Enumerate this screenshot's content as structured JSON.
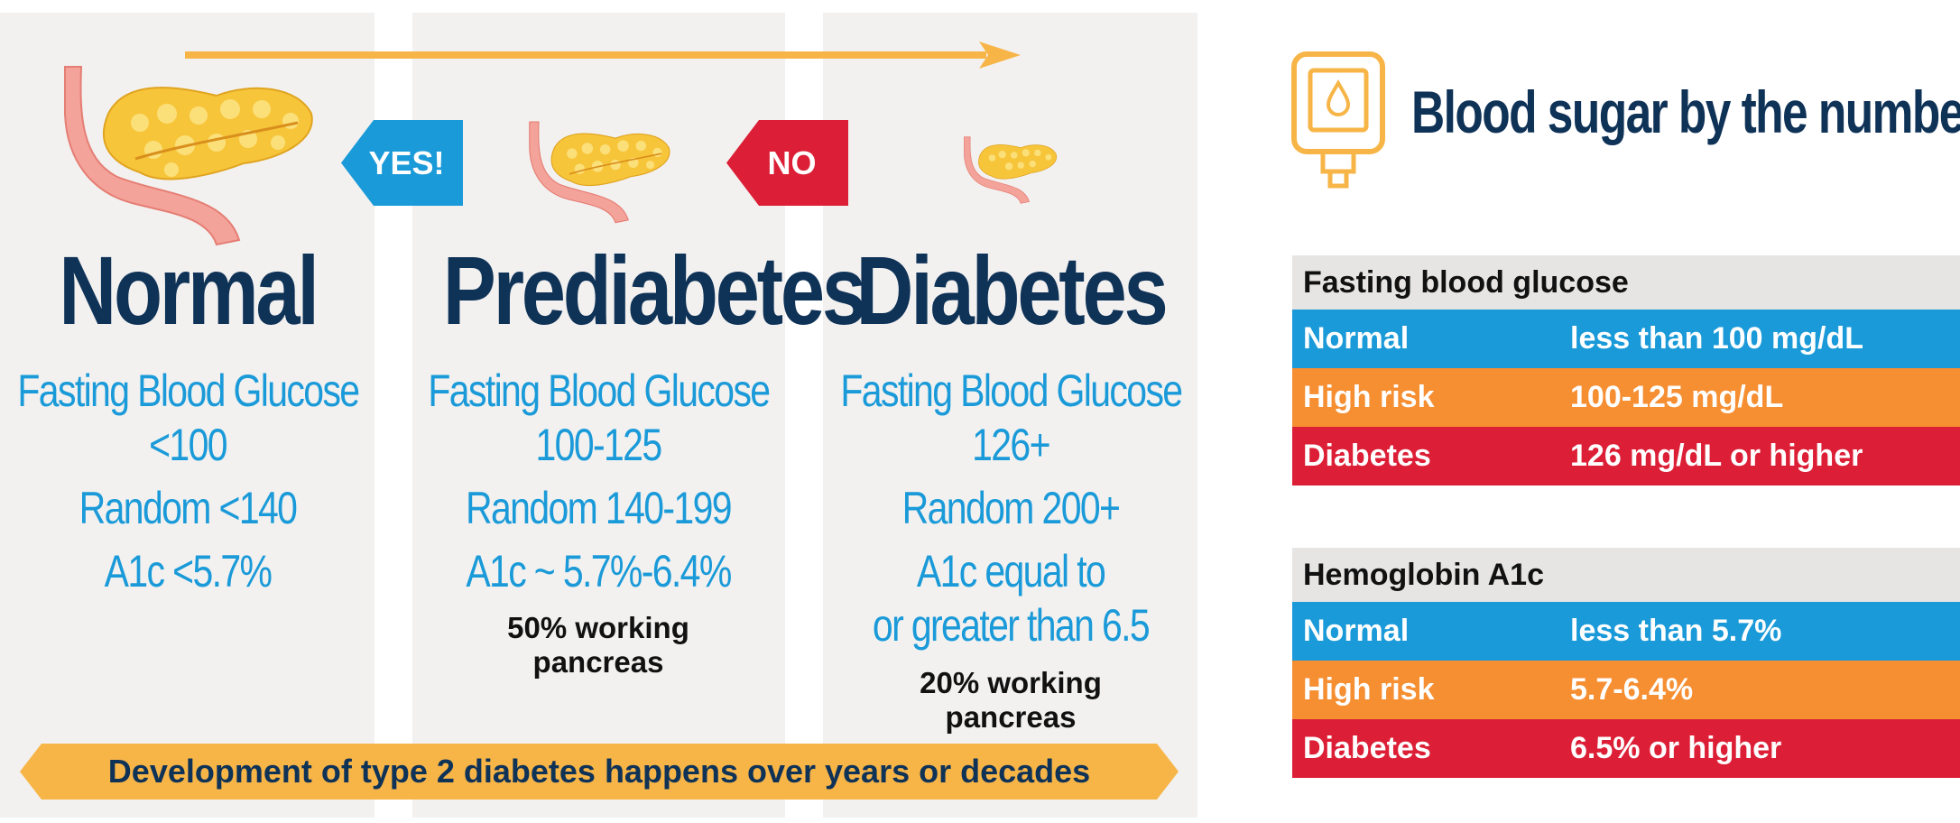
{
  "colors": {
    "navy": "#0f3257",
    "blue": "#1a9ad8",
    "orange": "#f68e32",
    "red": "#dc1f36",
    "yellow": "#f7b548",
    "panel": "#f2f1f0"
  },
  "stages": [
    {
      "title": "Normal",
      "lines": [
        "Fasting Blood Glucose",
        "<100",
        "Random <140",
        "A1c <5.7%"
      ],
      "note": []
    },
    {
      "title": "Prediabetes",
      "lines": [
        "Fasting Blood Glucose",
        "100-125",
        "Random 140-199",
        "A1c ~ 5.7%-6.4%"
      ],
      "note": [
        "50% working",
        "pancreas"
      ]
    },
    {
      "title": "Diabetes",
      "lines": [
        "Fasting Blood Glucose",
        "126+",
        "Random 200+",
        "A1c equal to",
        "or greater than 6.5"
      ],
      "note": [
        "20% working",
        "pancreas"
      ]
    }
  ],
  "tags": {
    "yes": "YES!",
    "no": "NO"
  },
  "banner": "Development of type 2 diabetes happens over years or decades",
  "headline": "Blood sugar by the numbers",
  "tables": [
    {
      "header": "Fasting blood glucose",
      "rows": [
        {
          "label": "Normal",
          "value": "less than 100 mg/dL",
          "color": "#1a9ad8"
        },
        {
          "label": "High risk",
          "value": "100-125 mg/dL",
          "color": "#f68e32"
        },
        {
          "label": "Diabetes",
          "value": "126 mg/dL or higher",
          "color": "#dc1f36"
        }
      ]
    },
    {
      "header": "Hemoglobin A1c",
      "rows": [
        {
          "label": "Normal",
          "value": "less than 5.7%",
          "color": "#1a9ad8"
        },
        {
          "label": "High risk",
          "value": "5.7-6.4%",
          "color": "#f68e32"
        },
        {
          "label": "Diabetes",
          "value": "6.5% or higher",
          "color": "#dc1f36"
        }
      ]
    }
  ],
  "icons": [
    "progression-arrow-icon",
    "pancreas-icon",
    "glucose-meter-icon"
  ]
}
